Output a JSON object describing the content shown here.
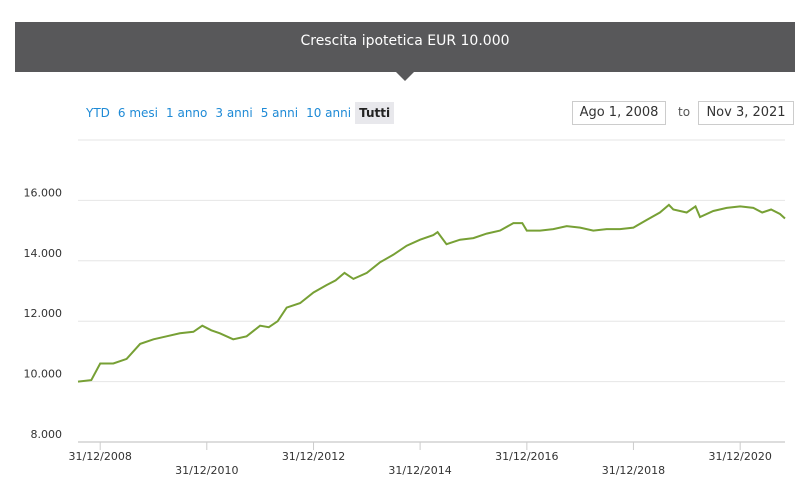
{
  "header": {
    "title": "Crescita ipotetica EUR 10.000"
  },
  "controls": {
    "ranges": [
      "YTD",
      "6 mesi",
      "1 anno",
      "3 anni",
      "5 anni",
      "10 anni",
      "Tutti"
    ],
    "selected_range": "Tutti",
    "from_date": "Ago 1, 2008",
    "to_label": "to",
    "to_date": "Nov 3, 2021"
  },
  "chart_data": {
    "type": "line",
    "x": [
      "01/08/2008",
      "31/10/2008",
      "31/12/2008",
      "31/03/2009",
      "30/06/2009",
      "30/09/2009",
      "31/12/2009",
      "31/03/2010",
      "30/06/2010",
      "30/09/2010",
      "30/11/2010",
      "31/01/2011",
      "31/03/2011",
      "30/06/2011",
      "30/09/2011",
      "31/12/2011",
      "29/02/2012",
      "30/04/2012",
      "30/06/2012",
      "30/09/2012",
      "31/12/2012",
      "31/03/2013",
      "31/05/2013",
      "31/07/2013",
      "30/09/2013",
      "31/12/2013",
      "31/03/2014",
      "30/06/2014",
      "30/09/2014",
      "31/12/2014",
      "31/03/2015",
      "30/04/2015",
      "30/06/2015",
      "30/09/2015",
      "31/12/2015",
      "31/03/2016",
      "30/06/2016",
      "30/09/2016",
      "30/11/2016",
      "31/12/2016",
      "31/03/2017",
      "30/06/2017",
      "30/09/2017",
      "31/12/2017",
      "31/03/2018",
      "30/06/2018",
      "30/09/2018",
      "31/12/2018",
      "31/03/2019",
      "30/06/2019",
      "31/08/2019",
      "30/09/2019",
      "31/12/2019",
      "29/02/2020",
      "31/03/2020",
      "30/06/2020",
      "30/09/2020",
      "31/12/2020",
      "31/03/2021",
      "31/05/2021",
      "31/07/2021",
      "30/09/2021",
      "03/11/2021"
    ],
    "series": [
      {
        "name": "Crescita",
        "color": "#77a035",
        "values": [
          10000,
          10050,
          10600,
          10600,
          10750,
          11250,
          11400,
          11500,
          11600,
          11650,
          11850,
          11700,
          11600,
          11400,
          11500,
          11850,
          11800,
          12000,
          12450,
          12600,
          12950,
          13200,
          13350,
          13600,
          13400,
          13600,
          13950,
          14200,
          14500,
          14700,
          14850,
          14950,
          14550,
          14700,
          14750,
          14900,
          15000,
          15250,
          15250,
          15000,
          15000,
          15050,
          15150,
          15100,
          15000,
          15050,
          15050,
          15100,
          15350,
          15600,
          15850,
          15700,
          15600,
          15800,
          15450,
          15650,
          15750,
          15800,
          15750,
          15600,
          15700,
          15550,
          15400
        ]
      }
    ],
    "xlim": [
      "01/08/2008",
      "03/11/2021"
    ],
    "xticks": [
      "31/12/2008",
      "31/12/2010",
      "31/12/2012",
      "31/12/2014",
      "31/12/2016",
      "31/12/2018",
      "31/12/2020"
    ],
    "ylim": [
      8000,
      18000
    ],
    "yticks": [
      {
        "value": 8000,
        "label": "8.000"
      },
      {
        "value": 10000,
        "label": "10.000"
      },
      {
        "value": 12000,
        "label": "12.000"
      },
      {
        "value": 14000,
        "label": "14.000"
      },
      {
        "value": 16000,
        "label": "16.000"
      }
    ],
    "grid": true
  }
}
